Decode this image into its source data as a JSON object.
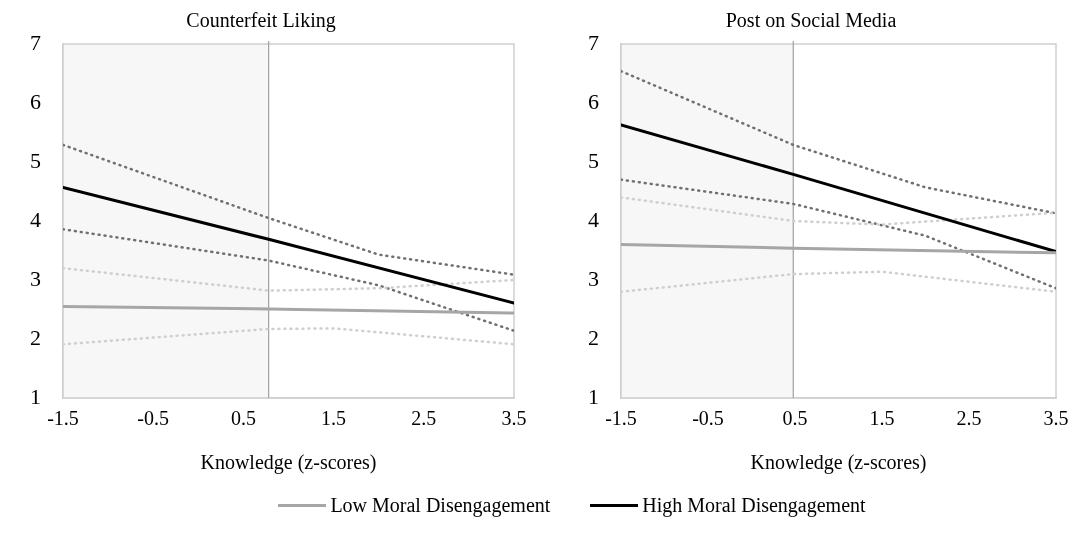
{
  "chart_data": [
    {
      "type": "line",
      "title": "Counterfeit Liking",
      "xlabel": "Knowledge (z-scores)",
      "xlim": [
        -1.5,
        3.5
      ],
      "xticks": [
        -1.5,
        -0.5,
        0.5,
        1.5,
        2.5,
        3.5
      ],
      "ylim": [
        1,
        7
      ],
      "yticks": [
        1,
        2,
        3,
        4,
        5,
        6,
        7
      ],
      "grid": false,
      "legend": "bottom",
      "marker": "none",
      "bands": [
        {
          "axis": "x",
          "from": -1.5,
          "to": 0.78,
          "color": "#f7f7f7"
        }
      ],
      "ref_lines": [
        {
          "axis": "x",
          "value": 0.78,
          "color": "#a0a0a0"
        }
      ],
      "series": [
        {
          "name": "Low Moral Disengagement",
          "color": "#a6a6a6",
          "line_style": "solid",
          "x": [
            -1.5,
            0.78,
            3.5
          ],
          "values": [
            2.55,
            2.51,
            2.44
          ]
        },
        {
          "name": "High Moral Disengagement",
          "color": "#000000",
          "line_style": "solid",
          "x": [
            -1.5,
            0.78,
            3.5
          ],
          "values": [
            4.57,
            3.69,
            2.61
          ]
        },
        {
          "color": "#cfcfcf",
          "line_style": "dotted",
          "x": [
            -1.5,
            0.78,
            2.0,
            3.5
          ],
          "values": [
            3.2,
            2.82,
            2.86,
            3.0
          ]
        },
        {
          "color": "#cfcfcf",
          "line_style": "dotted",
          "x": [
            -1.5,
            0.78,
            1.5,
            3.5
          ],
          "values": [
            1.91,
            2.17,
            2.18,
            1.91
          ]
        },
        {
          "color": "#707070",
          "line_style": "dotted",
          "x": [
            -1.5,
            0.78,
            2.0,
            3.5
          ],
          "values": [
            5.29,
            4.05,
            3.43,
            3.09
          ]
        },
        {
          "color": "#707070",
          "line_style": "dotted",
          "x": [
            -1.5,
            0.78,
            2.0,
            3.5
          ],
          "values": [
            3.86,
            3.33,
            2.91,
            2.14
          ]
        }
      ]
    },
    {
      "type": "line",
      "title": "Post on Social Media",
      "xlabel": "Knowledge (z-scores)",
      "xlim": [
        -1.5,
        3.5
      ],
      "xticks": [
        -1.5,
        -0.5,
        0.5,
        1.5,
        2.5,
        3.5
      ],
      "ylim": [
        1,
        7
      ],
      "yticks": [
        1,
        2,
        3,
        4,
        5,
        6,
        7
      ],
      "grid": false,
      "legend": "bottom",
      "marker": "none",
      "bands": [
        {
          "axis": "x",
          "from": -1.5,
          "to": 0.48,
          "color": "#f7f7f7"
        }
      ],
      "ref_lines": [
        {
          "axis": "x",
          "value": 0.48,
          "color": "#a0a0a0"
        }
      ],
      "series": [
        {
          "name": "Low Moral Disengagement",
          "color": "#a6a6a6",
          "line_style": "solid",
          "x": [
            -1.5,
            0.48,
            3.5
          ],
          "values": [
            3.6,
            3.54,
            3.46
          ]
        },
        {
          "name": "High Moral Disengagement",
          "color": "#000000",
          "line_style": "solid",
          "x": [
            -1.5,
            0.48,
            3.5
          ],
          "values": [
            5.63,
            4.79,
            3.48
          ]
        },
        {
          "color": "#cfcfcf",
          "line_style": "dotted",
          "x": [
            -1.5,
            0.48,
            1.5,
            3.5
          ],
          "values": [
            4.4,
            4.0,
            3.94,
            4.14
          ]
        },
        {
          "color": "#cfcfcf",
          "line_style": "dotted",
          "x": [
            -1.5,
            0.48,
            1.5,
            3.5
          ],
          "values": [
            2.8,
            3.1,
            3.14,
            2.8
          ]
        },
        {
          "color": "#707070",
          "line_style": "dotted",
          "x": [
            -1.5,
            0.48,
            2.0,
            3.5
          ],
          "values": [
            6.54,
            5.29,
            4.57,
            4.13
          ]
        },
        {
          "color": "#707070",
          "line_style": "dotted",
          "x": [
            -1.5,
            0.48,
            2.0,
            3.5
          ],
          "values": [
            4.7,
            4.29,
            3.75,
            2.86
          ]
        }
      ]
    }
  ]
}
